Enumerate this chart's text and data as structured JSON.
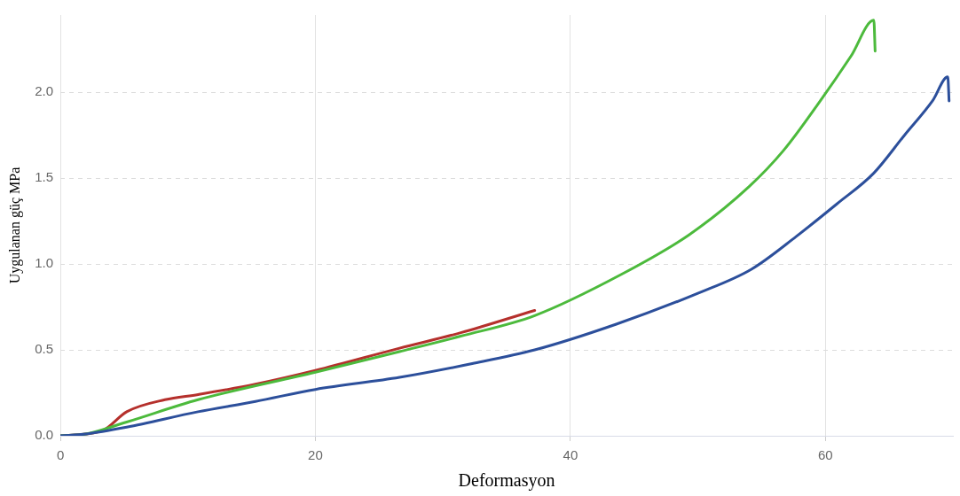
{
  "chart_data": {
    "type": "line",
    "xlabel": "Deformasyon",
    "ylabel": "Uygulanan güç MPa",
    "xlim": [
      0,
      70
    ],
    "xticks": [
      0,
      20,
      40,
      60
    ],
    "ylim": [
      0,
      2.45
    ],
    "yticks": [
      {
        "value": 0,
        "label": "0.0"
      },
      0.5,
      {
        "value": 1,
        "label": "1.0"
      },
      1.5,
      {
        "value": 2,
        "label": "2.0"
      }
    ],
    "grid": true,
    "legend": false,
    "marker": "none",
    "line_style": "solid",
    "series": [
      {
        "color": "#2c4f9b",
        "x": [
          0,
          2,
          5.2,
          10.8,
          15.3,
          20,
          26.6,
          32.3,
          37.2,
          43.6,
          50,
          54.2,
          57.7,
          60.9,
          63.8,
          66.2,
          68.4,
          69.6,
          69.7
        ],
        "values": [
          0,
          0.01,
          0.05,
          0.14,
          0.2,
          0.27,
          0.34,
          0.42,
          0.5,
          0.65,
          0.83,
          0.97,
          1.16,
          1.35,
          1.53,
          1.75,
          1.95,
          2.09,
          1.95
        ]
      },
      {
        "color": "#4cba3c",
        "x": [
          0,
          2,
          5.2,
          10.8,
          20,
          26.6,
          31.4,
          37.2,
          44,
          49.3,
          54,
          56.7,
          59.5,
          62,
          63.8,
          63.9
        ],
        "values": [
          0,
          0.01,
          0.08,
          0.21,
          0.37,
          0.49,
          0.58,
          0.7,
          0.94,
          1.17,
          1.45,
          1.66,
          1.94,
          2.21,
          2.42,
          2.24
        ]
      },
      {
        "color": "#b5302c",
        "x": [
          0,
          3.3,
          5.2,
          8.2,
          10.8,
          15.3,
          20,
          26.6,
          31.4,
          37.2
        ],
        "values": [
          0,
          0.03,
          0.14,
          0.21,
          0.24,
          0.3,
          0.38,
          0.51,
          0.6,
          0.73
        ]
      }
    ]
  }
}
